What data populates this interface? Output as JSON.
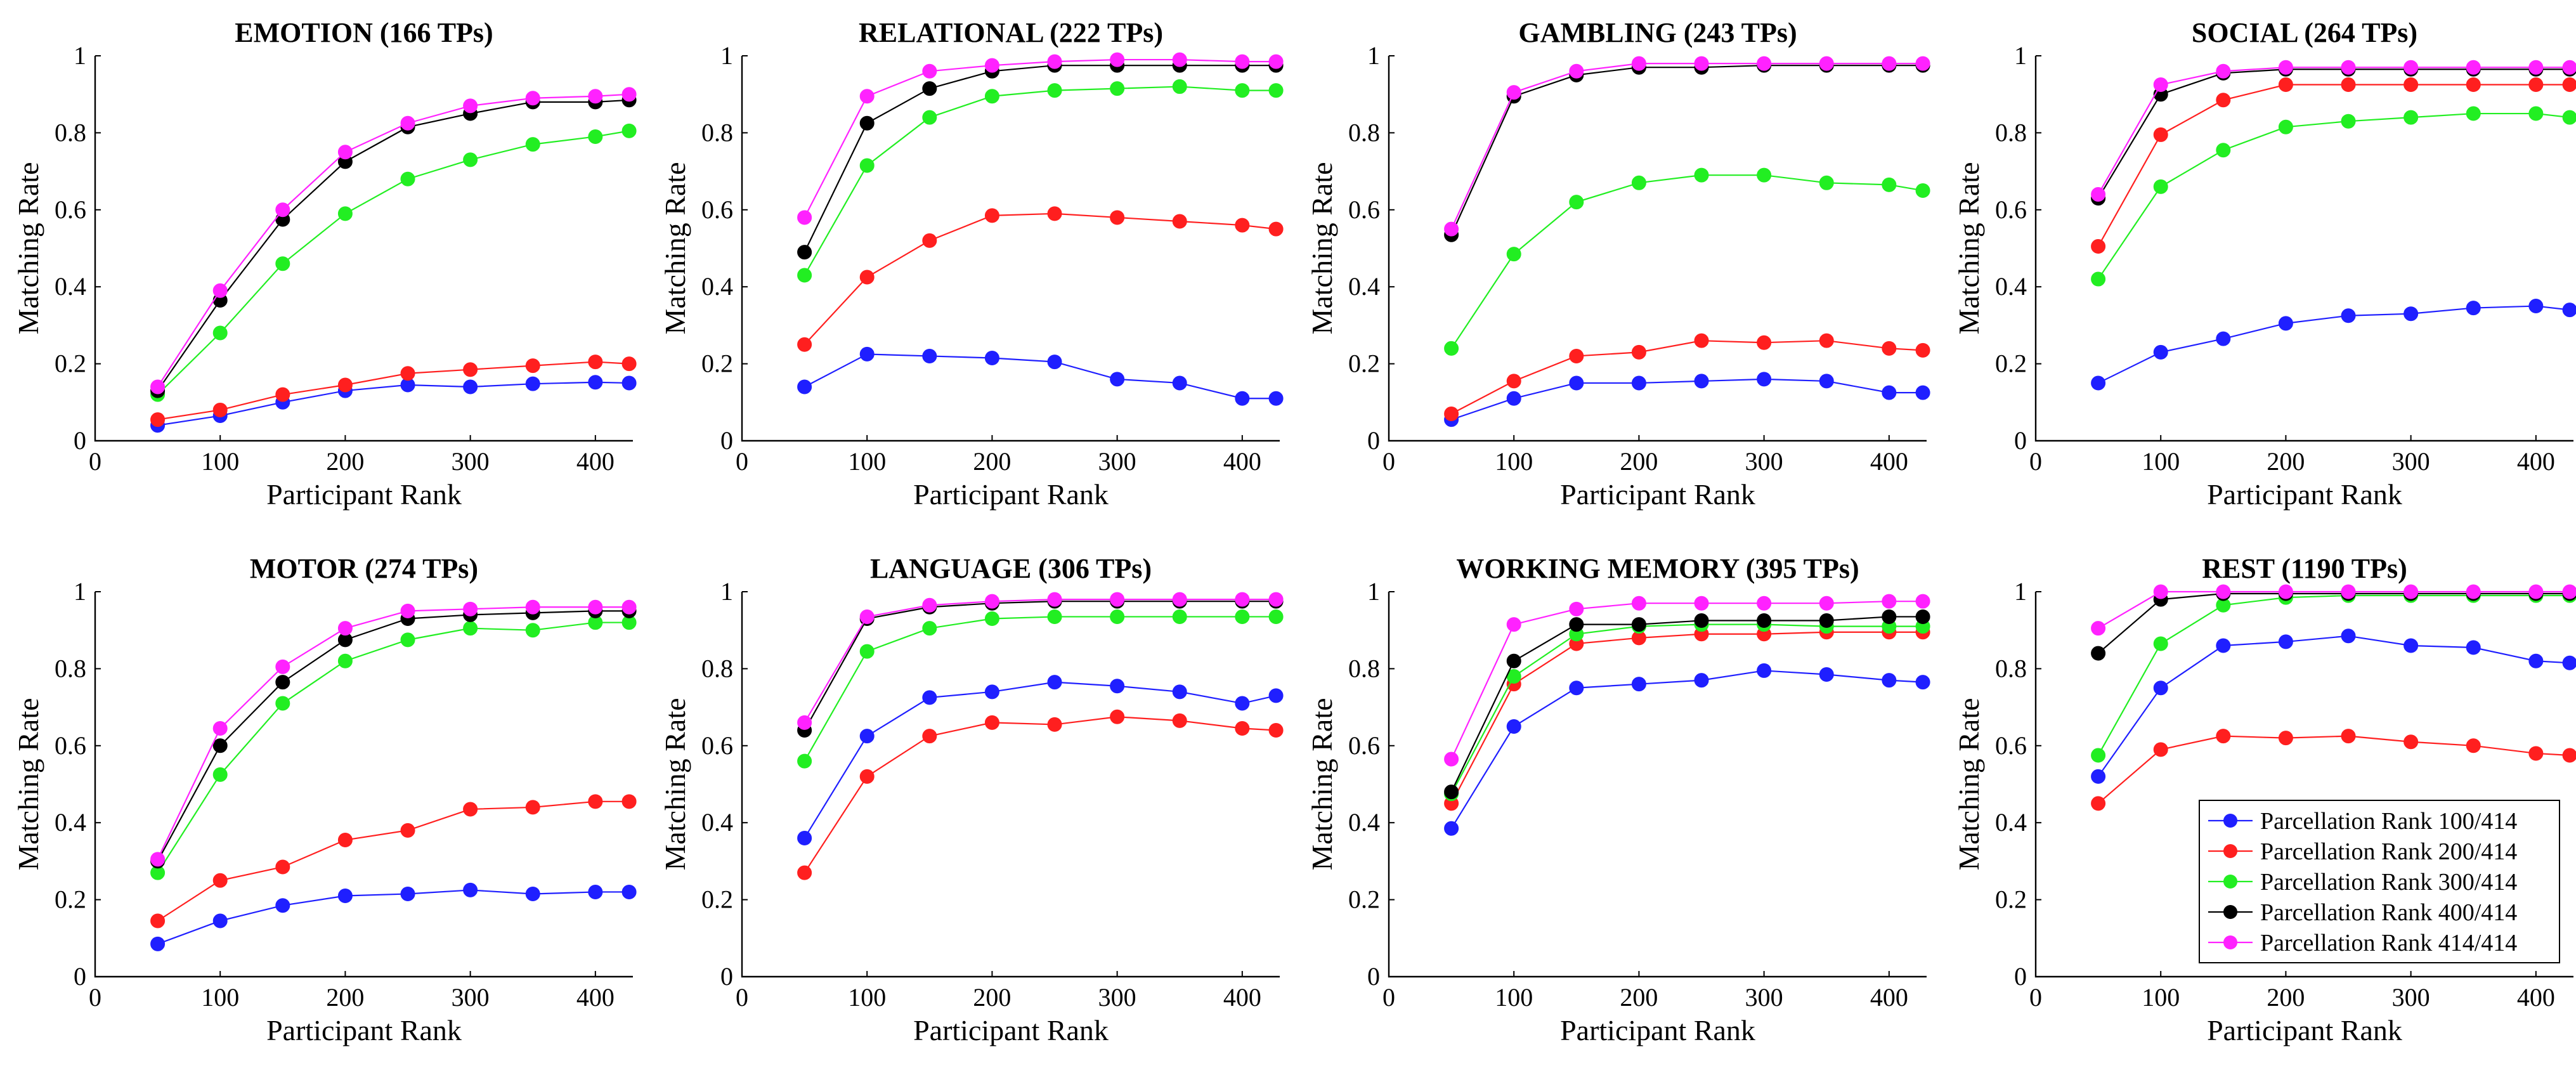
{
  "chart_data": {
    "type": "line",
    "x": [
      50,
      100,
      150,
      200,
      250,
      300,
      350,
      400,
      427
    ],
    "xlim": [
      0,
      430
    ],
    "ylim": [
      0,
      1
    ],
    "xticks": [
      0,
      100,
      200,
      300,
      400
    ],
    "yticks": [
      0,
      0.2,
      0.4,
      0.6,
      0.8,
      1
    ],
    "xticklabels": [
      "0",
      "100",
      "200",
      "300",
      "400"
    ],
    "yticklabels": [
      "0",
      "0.2",
      "0.4",
      "0.6",
      "0.8",
      "1"
    ],
    "xlabel": "Participant Rank",
    "ylabel": "Matching Rate",
    "grid": false,
    "legend": {
      "location": "bottom-right of last panel",
      "entries": [
        "Parcellation Rank 100/414",
        "Parcellation Rank 200/414",
        "Parcellation Rank 300/414",
        "Parcellation Rank 400/414",
        "Parcellation Rank 414/414"
      ]
    },
    "series_colors": [
      "#1f1fff",
      "#ff1f1f",
      "#22ee22",
      "#000000",
      "#ff22ff"
    ],
    "panels": [
      {
        "title": "EMOTION (166 TPs)",
        "series": [
          {
            "name": "Parcellation Rank 100/414",
            "values": [
              0.04,
              0.065,
              0.1,
              0.13,
              0.145,
              0.14,
              0.148,
              0.152,
              0.15
            ]
          },
          {
            "name": "Parcellation Rank 200/414",
            "values": [
              0.055,
              0.08,
              0.12,
              0.145,
              0.175,
              0.185,
              0.195,
              0.205,
              0.2
            ]
          },
          {
            "name": "Parcellation Rank 300/414",
            "values": [
              0.12,
              0.28,
              0.46,
              0.59,
              0.68,
              0.73,
              0.77,
              0.79,
              0.805
            ]
          },
          {
            "name": "Parcellation Rank 400/414",
            "values": [
              0.13,
              0.365,
              0.575,
              0.725,
              0.815,
              0.85,
              0.88,
              0.88,
              0.885
            ]
          },
          {
            "name": "Parcellation Rank 414/414",
            "values": [
              0.14,
              0.39,
              0.6,
              0.75,
              0.825,
              0.87,
              0.89,
              0.895,
              0.9
            ]
          }
        ]
      },
      {
        "title": "RELATIONAL (222 TPs)",
        "series": [
          {
            "name": "Parcellation Rank 100/414",
            "values": [
              0.14,
              0.225,
              0.22,
              0.215,
              0.205,
              0.16,
              0.15,
              0.11,
              0.11
            ]
          },
          {
            "name": "Parcellation Rank 200/414",
            "values": [
              0.25,
              0.425,
              0.52,
              0.585,
              0.59,
              0.58,
              0.57,
              0.56,
              0.55
            ]
          },
          {
            "name": "Parcellation Rank 300/414",
            "values": [
              0.43,
              0.715,
              0.84,
              0.895,
              0.91,
              0.915,
              0.92,
              0.91,
              0.91
            ]
          },
          {
            "name": "Parcellation Rank 400/414",
            "values": [
              0.49,
              0.825,
              0.915,
              0.96,
              0.975,
              0.975,
              0.975,
              0.975,
              0.975
            ]
          },
          {
            "name": "Parcellation Rank 414/414",
            "values": [
              0.58,
              0.895,
              0.96,
              0.975,
              0.985,
              0.99,
              0.99,
              0.985,
              0.985
            ]
          }
        ]
      },
      {
        "title": "GAMBLING (243 TPs)",
        "series": [
          {
            "name": "Parcellation Rank 100/414",
            "values": [
              0.055,
              0.11,
              0.15,
              0.15,
              0.155,
              0.16,
              0.155,
              0.125,
              0.125
            ]
          },
          {
            "name": "Parcellation Rank 200/414",
            "values": [
              0.07,
              0.155,
              0.22,
              0.23,
              0.26,
              0.255,
              0.26,
              0.24,
              0.235
            ]
          },
          {
            "name": "Parcellation Rank 300/414",
            "values": [
              0.24,
              0.485,
              0.62,
              0.67,
              0.69,
              0.69,
              0.67,
              0.665,
              0.65
            ]
          },
          {
            "name": "Parcellation Rank 400/414",
            "values": [
              0.535,
              0.895,
              0.95,
              0.97,
              0.97,
              0.975,
              0.975,
              0.975,
              0.975
            ]
          },
          {
            "name": "Parcellation Rank 414/414",
            "values": [
              0.55,
              0.905,
              0.96,
              0.98,
              0.98,
              0.98,
              0.98,
              0.98,
              0.98
            ]
          }
        ]
      },
      {
        "title": "SOCIAL (264 TPs)",
        "series": [
          {
            "name": "Parcellation Rank 100/414",
            "values": [
              0.15,
              0.23,
              0.265,
              0.305,
              0.325,
              0.33,
              0.345,
              0.35,
              0.34
            ]
          },
          {
            "name": "Parcellation Rank 200/414",
            "values": [
              0.505,
              0.795,
              0.885,
              0.925,
              0.925,
              0.925,
              0.925,
              0.925,
              0.925
            ]
          },
          {
            "name": "Parcellation Rank 300/414",
            "values": [
              0.42,
              0.66,
              0.755,
              0.815,
              0.83,
              0.84,
              0.85,
              0.85,
              0.84
            ]
          },
          {
            "name": "Parcellation Rank 400/414",
            "values": [
              0.63,
              0.9,
              0.955,
              0.965,
              0.965,
              0.965,
              0.965,
              0.965,
              0.965
            ]
          },
          {
            "name": "Parcellation Rank 414/414",
            "values": [
              0.64,
              0.925,
              0.96,
              0.97,
              0.97,
              0.97,
              0.97,
              0.97,
              0.97
            ]
          }
        ]
      },
      {
        "title": "MOTOR (274 TPs)",
        "series": [
          {
            "name": "Parcellation Rank 100/414",
            "values": [
              0.085,
              0.145,
              0.185,
              0.21,
              0.215,
              0.225,
              0.215,
              0.22,
              0.22
            ]
          },
          {
            "name": "Parcellation Rank 200/414",
            "values": [
              0.145,
              0.25,
              0.285,
              0.355,
              0.38,
              0.435,
              0.44,
              0.455,
              0.455
            ]
          },
          {
            "name": "Parcellation Rank 300/414",
            "values": [
              0.27,
              0.525,
              0.71,
              0.82,
              0.875,
              0.905,
              0.9,
              0.92,
              0.92
            ]
          },
          {
            "name": "Parcellation Rank 400/414",
            "values": [
              0.3,
              0.6,
              0.765,
              0.875,
              0.93,
              0.94,
              0.945,
              0.95,
              0.95
            ]
          },
          {
            "name": "Parcellation Rank 414/414",
            "values": [
              0.305,
              0.645,
              0.805,
              0.905,
              0.95,
              0.955,
              0.96,
              0.96,
              0.96
            ]
          }
        ]
      },
      {
        "title": "LANGUAGE (306 TPs)",
        "series": [
          {
            "name": "Parcellation Rank 100/414",
            "values": [
              0.36,
              0.625,
              0.725,
              0.74,
              0.765,
              0.755,
              0.74,
              0.71,
              0.73
            ]
          },
          {
            "name": "Parcellation Rank 200/414",
            "values": [
              0.27,
              0.52,
              0.625,
              0.66,
              0.655,
              0.675,
              0.665,
              0.645,
              0.64
            ]
          },
          {
            "name": "Parcellation Rank 300/414",
            "values": [
              0.56,
              0.845,
              0.905,
              0.93,
              0.935,
              0.935,
              0.935,
              0.935,
              0.935
            ]
          },
          {
            "name": "Parcellation Rank 400/414",
            "values": [
              0.64,
              0.93,
              0.96,
              0.97,
              0.975,
              0.975,
              0.975,
              0.975,
              0.975
            ]
          },
          {
            "name": "Parcellation Rank 414/414",
            "values": [
              0.66,
              0.935,
              0.965,
              0.975,
              0.98,
              0.98,
              0.98,
              0.98,
              0.98
            ]
          }
        ]
      },
      {
        "title": "WORKING MEMORY (395 TPs)",
        "series": [
          {
            "name": "Parcellation Rank 100/414",
            "values": [
              0.385,
              0.65,
              0.75,
              0.76,
              0.77,
              0.795,
              0.785,
              0.77,
              0.765
            ]
          },
          {
            "name": "Parcellation Rank 200/414",
            "values": [
              0.45,
              0.76,
              0.865,
              0.88,
              0.89,
              0.89,
              0.895,
              0.895,
              0.895
            ]
          },
          {
            "name": "Parcellation Rank 300/414",
            "values": [
              0.475,
              0.78,
              0.89,
              0.91,
              0.915,
              0.915,
              0.91,
              0.91,
              0.91
            ]
          },
          {
            "name": "Parcellation Rank 400/414",
            "values": [
              0.48,
              0.82,
              0.915,
              0.915,
              0.925,
              0.925,
              0.925,
              0.935,
              0.935
            ]
          },
          {
            "name": "Parcellation Rank 414/414",
            "values": [
              0.565,
              0.915,
              0.955,
              0.97,
              0.97,
              0.97,
              0.97,
              0.975,
              0.975
            ]
          }
        ]
      },
      {
        "title": "REST (1190 TPs)",
        "series": [
          {
            "name": "Parcellation Rank 100/414",
            "values": [
              0.52,
              0.75,
              0.86,
              0.87,
              0.885,
              0.86,
              0.855,
              0.82,
              0.815
            ]
          },
          {
            "name": "Parcellation Rank 200/414",
            "values": [
              0.45,
              0.59,
              0.625,
              0.62,
              0.625,
              0.61,
              0.6,
              0.58,
              0.575
            ]
          },
          {
            "name": "Parcellation Rank 300/414",
            "values": [
              0.575,
              0.865,
              0.965,
              0.985,
              0.99,
              0.99,
              0.99,
              0.99,
              0.99
            ]
          },
          {
            "name": "Parcellation Rank 400/414",
            "values": [
              0.84,
              0.98,
              0.995,
              0.995,
              0.995,
              0.995,
              0.995,
              0.995,
              0.995
            ]
          },
          {
            "name": "Parcellation Rank 414/414",
            "values": [
              0.905,
              1.0,
              1.0,
              1.0,
              1.0,
              1.0,
              1.0,
              1.0,
              1.0
            ]
          }
        ]
      }
    ]
  }
}
